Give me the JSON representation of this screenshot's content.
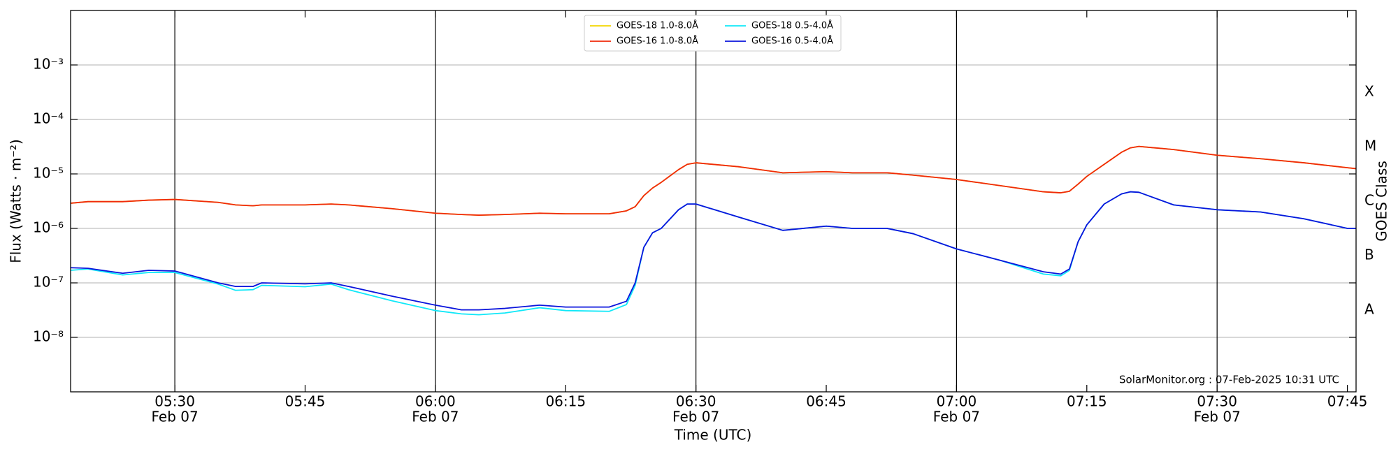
{
  "chart_data": {
    "type": "line",
    "xlabel": "Time (UTC)",
    "ylabel": "Flux (Watts · m⁻²)",
    "y2label": "GOES Class",
    "annotation": "SolarMonitor.org : 07-Feb-2025 10:31 UTC",
    "log_scale": true,
    "grid": true,
    "legend": "top",
    "x": [
      "05:18",
      "05:20",
      "05:24",
      "05:27",
      "05:30",
      "05:35",
      "05:37",
      "05:39",
      "05:40",
      "05:45",
      "05:48",
      "05:50",
      "05:55",
      "06:00",
      "06:03",
      "06:05",
      "06:08",
      "06:12",
      "06:15",
      "06:20",
      "06:22",
      "06:23",
      "06:24",
      "06:25",
      "06:26",
      "06:28",
      "06:29",
      "06:30",
      "06:35",
      "06:40",
      "06:45",
      "06:48",
      "06:52",
      "06:55",
      "07:00",
      "07:05",
      "07:10",
      "07:12",
      "07:13",
      "07:14",
      "07:15",
      "07:17",
      "07:19",
      "07:20",
      "07:21",
      "07:25",
      "07:30",
      "07:35",
      "07:40",
      "07:45",
      "07:46"
    ],
    "xlim": [
      "05:18",
      "07:46"
    ],
    "xticks": [
      {
        "value": "05:30",
        "label": "05:30",
        "date": "Feb 07"
      },
      "05:45",
      {
        "value": "06:00",
        "label": "06:00",
        "date": "Feb 07"
      },
      "06:15",
      {
        "value": "06:30",
        "label": "06:30",
        "date": "Feb 07"
      },
      "06:45",
      {
        "value": "07:00",
        "label": "07:00",
        "date": "Feb 07"
      },
      "07:15",
      {
        "value": "07:30",
        "label": "07:30",
        "date": "Feb 07"
      },
      "07:45"
    ],
    "ylim": [
      1e-09,
      0.01
    ],
    "yticks": [
      {
        "value": 1e-08,
        "label": "10⁻⁸"
      },
      {
        "value": 1e-07,
        "label": "10⁻⁷"
      },
      {
        "value": 1e-06,
        "label": "10⁻⁶"
      },
      {
        "value": 1e-05,
        "label": "10⁻⁵"
      },
      {
        "value": 0.0001,
        "label": "10⁻⁴"
      },
      {
        "value": 0.001,
        "label": "10⁻³"
      }
    ],
    "y2lim": [
      1e-09,
      0.01
    ],
    "y2ticks": [
      {
        "value": 3.16e-08,
        "label": "A"
      },
      {
        "value": 3.16e-07,
        "label": "B"
      },
      {
        "value": 3.16e-06,
        "label": "C"
      },
      {
        "value": 3.16e-05,
        "label": "M"
      },
      {
        "value": 0.000316,
        "label": "X"
      }
    ],
    "series": [
      {
        "name": "GOES-18 1.0-8.0Å",
        "color": "#f2d600",
        "values": [
          2.9e-06,
          3.1e-06,
          3.1e-06,
          3.3e-06,
          3.4e-06,
          3e-06,
          2.7e-06,
          2.6e-06,
          2.7e-06,
          2.7e-06,
          2.8e-06,
          2.7e-06,
          2.3e-06,
          1.9e-06,
          1.8e-06,
          1.75e-06,
          1.8e-06,
          1.9e-06,
          1.85e-06,
          1.85e-06,
          2.1e-06,
          2.5e-06,
          4e-06,
          5.5e-06,
          7e-06,
          1.2e-05,
          1.5e-05,
          1.6e-05,
          1.35e-05,
          1.05e-05,
          1.1e-05,
          1.05e-05,
          1.05e-05,
          9.5e-06,
          7.9e-06,
          6.1e-06,
          4.7e-06,
          4.5e-06,
          4.8e-06,
          6.5e-06,
          9e-06,
          1.5e-05,
          2.5e-05,
          3e-05,
          3.2e-05,
          2.8e-05,
          2.2e-05,
          1.9e-05,
          1.6e-05,
          1.3e-05,
          1.25e-05
        ]
      },
      {
        "name": "GOES-16 1.0-8.0Å",
        "color": "#f02a0a",
        "values": [
          2.9e-06,
          3.1e-06,
          3.1e-06,
          3.3e-06,
          3.4e-06,
          3e-06,
          2.7e-06,
          2.6e-06,
          2.7e-06,
          2.7e-06,
          2.8e-06,
          2.7e-06,
          2.3e-06,
          1.9e-06,
          1.8e-06,
          1.75e-06,
          1.8e-06,
          1.9e-06,
          1.85e-06,
          1.85e-06,
          2.1e-06,
          2.5e-06,
          4e-06,
          5.5e-06,
          7e-06,
          1.2e-05,
          1.5e-05,
          1.6e-05,
          1.35e-05,
          1.05e-05,
          1.1e-05,
          1.05e-05,
          1.05e-05,
          9.5e-06,
          7.9e-06,
          6.1e-06,
          4.7e-06,
          4.5e-06,
          4.8e-06,
          6.5e-06,
          9e-06,
          1.5e-05,
          2.5e-05,
          3e-05,
          3.2e-05,
          2.8e-05,
          2.2e-05,
          1.9e-05,
          1.6e-05,
          1.3e-05,
          1.25e-05
        ]
      },
      {
        "name": "GOES-18 0.5-4.0Å",
        "color": "#10e8f8",
        "values": [
          1.7e-07,
          1.8e-07,
          1.4e-07,
          1.55e-07,
          1.55e-07,
          9.5e-08,
          7.3e-08,
          7.5e-08,
          9e-08,
          8.5e-08,
          9.5e-08,
          7.5e-08,
          4.7e-08,
          3.1e-08,
          2.7e-08,
          2.6e-08,
          2.8e-08,
          3.5e-08,
          3.1e-08,
          3e-08,
          4e-08,
          9e-08,
          4.5e-07,
          8.3e-07,
          1e-06,
          2.2e-06,
          2.8e-06,
          2.8e-06,
          1.6e-06,
          9.2e-07,
          1.1e-06,
          1e-06,
          1e-06,
          8e-07,
          4.2e-07,
          2.6e-07,
          1.45e-07,
          1.35e-07,
          1.7e-07,
          5.7e-07,
          1.16e-06,
          2.8e-06,
          4.3e-06,
          4.7e-06,
          4.6e-06,
          2.7e-06,
          2.2e-06,
          2e-06,
          1.5e-06,
          1e-06,
          1e-06
        ]
      },
      {
        "name": "GOES-16 0.5-4.0Å",
        "color": "#0a14dc",
        "values": [
          1.9e-07,
          1.85e-07,
          1.5e-07,
          1.7e-07,
          1.65e-07,
          1e-07,
          8.6e-08,
          8.6e-08,
          1e-07,
          9.6e-08,
          1e-07,
          8.6e-08,
          5.7e-08,
          3.9e-08,
          3.2e-08,
          3.2e-08,
          3.4e-08,
          3.9e-08,
          3.6e-08,
          3.6e-08,
          4.6e-08,
          1e-07,
          4.5e-07,
          8.3e-07,
          1e-06,
          2.2e-06,
          2.8e-06,
          2.8e-06,
          1.6e-06,
          9.2e-07,
          1.1e-06,
          1e-06,
          1e-06,
          8e-07,
          4.2e-07,
          2.6e-07,
          1.6e-07,
          1.45e-07,
          1.8e-07,
          5.7e-07,
          1.16e-06,
          2.8e-06,
          4.3e-06,
          4.7e-06,
          4.6e-06,
          2.7e-06,
          2.2e-06,
          2e-06,
          1.5e-06,
          1e-06,
          1e-06
        ]
      }
    ]
  }
}
